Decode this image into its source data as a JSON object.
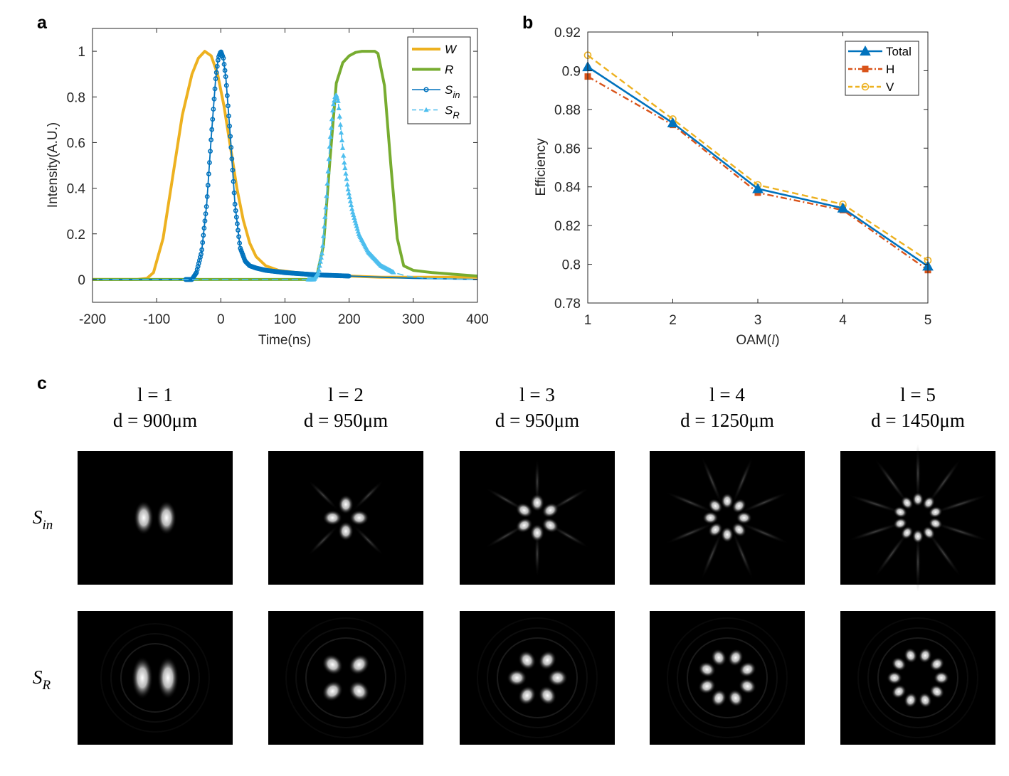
{
  "panel_labels": {
    "a": "a",
    "b": "b",
    "c": "c"
  },
  "colors": {
    "W": "#EDB120",
    "R": "#77AC30",
    "S_in": "#0072BD",
    "S_R": "#4DBEEE",
    "Total": "#0072BD",
    "H": "#D95319",
    "V": "#EDB120",
    "axis": "#262626"
  },
  "chart_data": [
    {
      "id": "a",
      "type": "line",
      "xlabel": "Time(ns)",
      "ylabel": "Intensity(A.U.)",
      "xlim": [
        -200,
        400
      ],
      "ylim": [
        -0.1,
        1.1
      ],
      "xticks": [
        -200,
        -100,
        0,
        100,
        200,
        300,
        400
      ],
      "xtick_labels": [
        "-200",
        "-100",
        "0",
        "100",
        "200",
        "300",
        "400"
      ],
      "yticks": [
        0,
        0.2,
        0.4,
        0.6,
        0.8,
        1
      ],
      "ytick_labels": [
        "0",
        "0.2",
        "0.4",
        "0.6",
        "0.8",
        "1"
      ],
      "legend_position": "top-right",
      "series": [
        {
          "name": "W",
          "label_main": "W",
          "label_sub": "",
          "style": "solid",
          "marker": "none",
          "x": [
            -200,
            -130,
            -115,
            -105,
            -90,
            -75,
            -60,
            -45,
            -35,
            -25,
            -15,
            -5,
            5,
            15,
            25,
            35,
            45,
            55,
            70,
            90,
            120,
            160,
            200,
            250,
            300,
            400
          ],
          "y": [
            0,
            0,
            0.005,
            0.03,
            0.18,
            0.45,
            0.72,
            0.9,
            0.97,
            1.0,
            0.98,
            0.9,
            0.76,
            0.58,
            0.4,
            0.26,
            0.16,
            0.1,
            0.06,
            0.04,
            0.03,
            0.02,
            0.015,
            0.01,
            0.01,
            0.01
          ]
        },
        {
          "name": "R",
          "label_main": "R",
          "label_sub": "",
          "style": "solid",
          "marker": "none",
          "x": [
            -200,
            140,
            150,
            160,
            170,
            180,
            190,
            200,
            210,
            220,
            240,
            245,
            255,
            265,
            275,
            285,
            300,
            330,
            400
          ],
          "y": [
            0,
            0,
            0.02,
            0.15,
            0.52,
            0.86,
            0.95,
            0.98,
            0.995,
            1.0,
            1.0,
            0.99,
            0.85,
            0.5,
            0.18,
            0.06,
            0.04,
            0.03,
            0.015
          ]
        },
        {
          "name": "S_in",
          "label_main": "S",
          "label_sub": "in",
          "style": "solid",
          "marker": "circle",
          "x": [
            -200,
            -45,
            -38,
            -30,
            -22,
            -15,
            -8,
            -4,
            0,
            4,
            8,
            15,
            22,
            30,
            38,
            45,
            55,
            70,
            100,
            150,
            200,
            250,
            300,
            400
          ],
          "y": [
            0,
            0,
            0.03,
            0.12,
            0.33,
            0.62,
            0.88,
            0.97,
            1.0,
            0.97,
            0.88,
            0.62,
            0.33,
            0.14,
            0.08,
            0.06,
            0.05,
            0.04,
            0.03,
            0.02,
            0.015,
            0.01,
            0.005,
            0
          ]
        },
        {
          "name": "S_R",
          "label_main": "S",
          "label_sub": "R",
          "style": "dashed",
          "marker": "triangle",
          "x": [
            -200,
            145,
            152,
            158,
            164,
            170,
            175,
            178,
            180,
            183,
            187,
            192,
            198,
            205,
            215,
            230,
            250,
            270,
            290,
            320,
            400
          ],
          "y": [
            0,
            0,
            0.03,
            0.12,
            0.33,
            0.6,
            0.76,
            0.8,
            0.81,
            0.78,
            0.66,
            0.52,
            0.4,
            0.3,
            0.2,
            0.12,
            0.06,
            0.03,
            0.015,
            0.005,
            0
          ]
        }
      ]
    },
    {
      "id": "b",
      "type": "line",
      "xlabel": "OAM(",
      "xlabel_italic": "l",
      "xlabel_end": ")",
      "ylabel": "Efficiency",
      "xlim": [
        1,
        5
      ],
      "ylim": [
        0.78,
        0.92
      ],
      "xticks": [
        1,
        2,
        3,
        4,
        5
      ],
      "xtick_labels": [
        "1",
        "2",
        "3",
        "4",
        "5"
      ],
      "yticks": [
        0.78,
        0.8,
        0.82,
        0.84,
        0.86,
        0.88,
        0.9,
        0.92
      ],
      "ytick_labels": [
        "0.78",
        "0.8",
        "0.82",
        "0.84",
        "0.86",
        "0.88",
        "0.9",
        "0.92"
      ],
      "legend_position": "top-right",
      "categories": [
        1,
        2,
        3,
        4,
        5
      ],
      "series": [
        {
          "name": "Total",
          "style": "solid",
          "marker": "triangle",
          "values": [
            0.902,
            0.873,
            0.839,
            0.829,
            0.799
          ]
        },
        {
          "name": "H",
          "style": "dashdot",
          "marker": "square",
          "values": [
            0.897,
            0.872,
            0.837,
            0.828,
            0.797
          ]
        },
        {
          "name": "V",
          "style": "dashed",
          "marker": "circle",
          "values": [
            0.908,
            0.875,
            0.841,
            0.831,
            0.802
          ]
        }
      ]
    }
  ],
  "panel_c": {
    "row_labels": [
      {
        "main": "S",
        "sub": "in"
      },
      {
        "main": "S",
        "sub": "R"
      }
    ],
    "columns": [
      {
        "l_text": "l = 1",
        "d_text": "d = 900μm",
        "lobes": 2
      },
      {
        "l_text": "l = 2",
        "d_text": "d = 950μm",
        "lobes": 4
      },
      {
        "l_text": "l = 3",
        "d_text": "d = 950μm",
        "lobes": 6
      },
      {
        "l_text": "l = 4",
        "d_text": "d = 1250μm",
        "lobes": 8
      },
      {
        "l_text": "l = 5",
        "d_text": "d = 1450μm",
        "lobes": 10
      }
    ]
  }
}
